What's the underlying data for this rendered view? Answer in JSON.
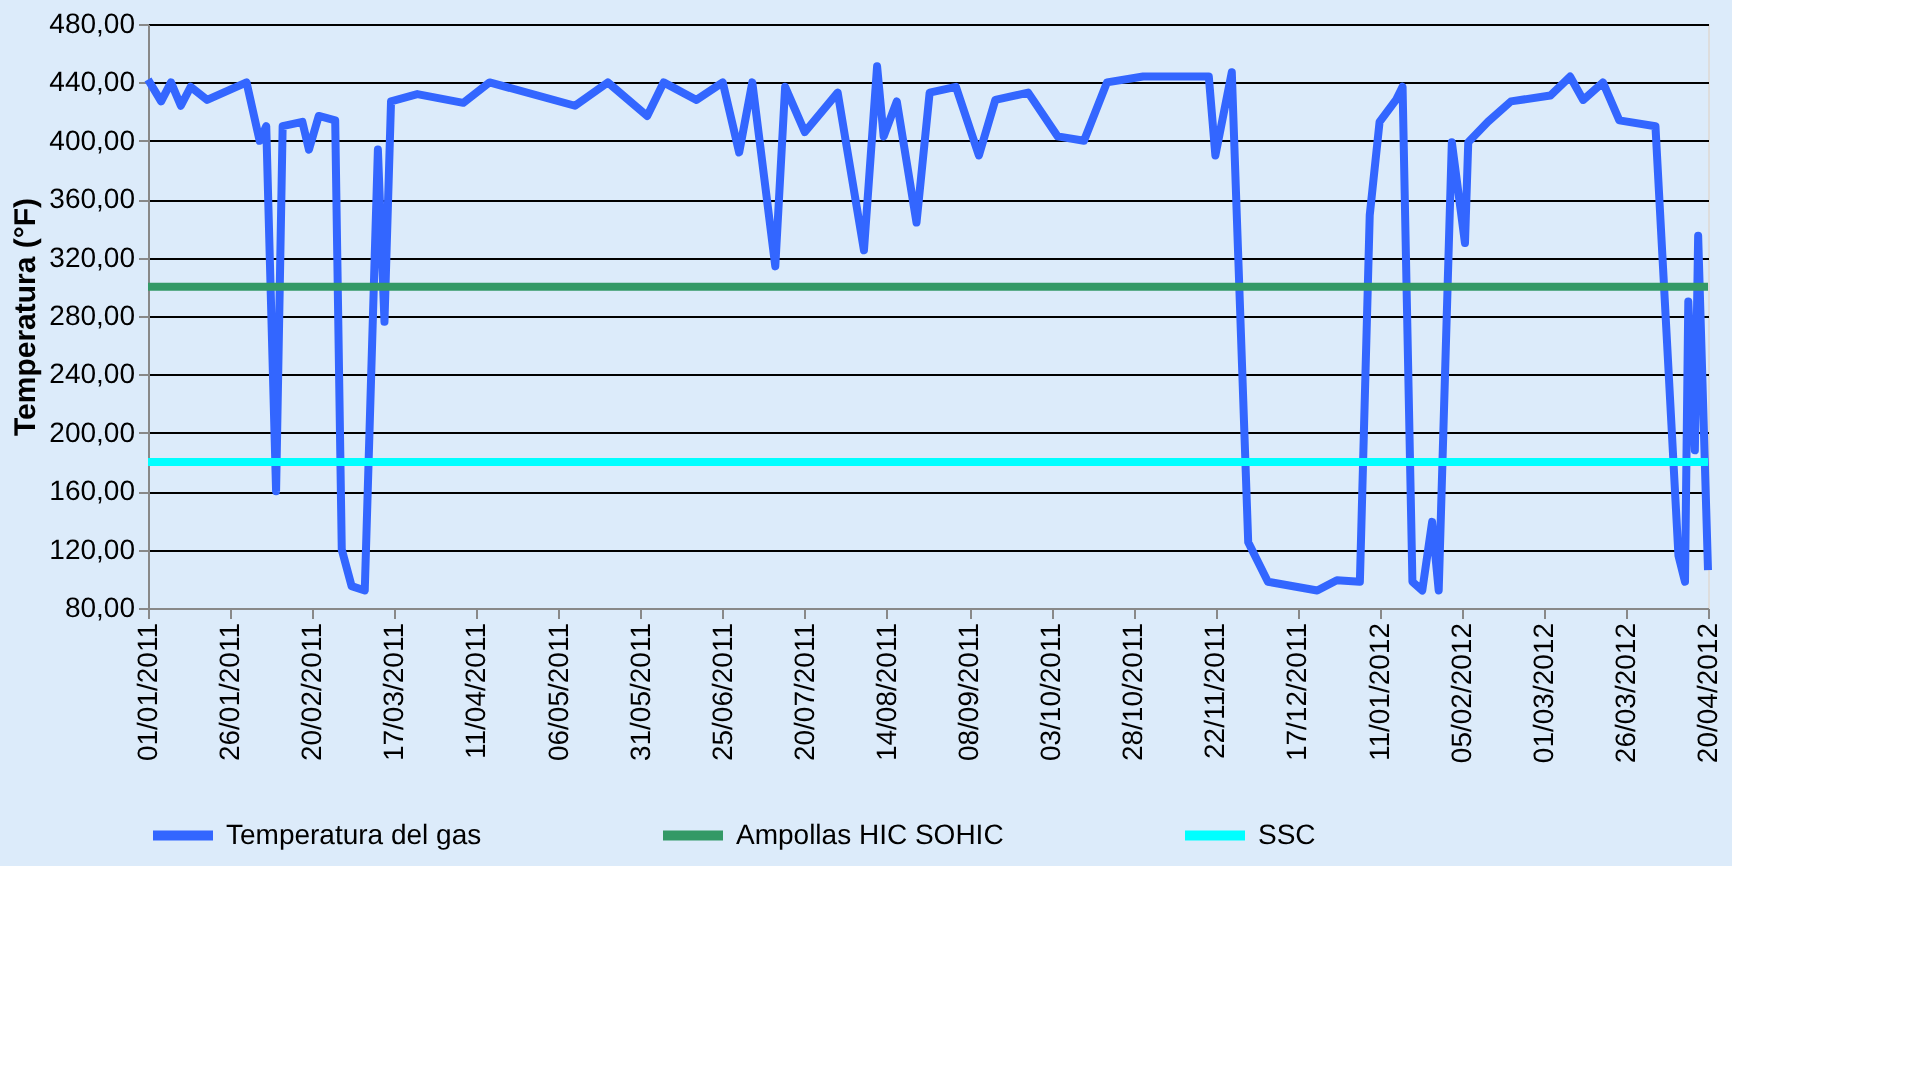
{
  "chart_data": {
    "type": "line",
    "ylabel": "Temperatura (°F)",
    "grid": "y",
    "legend": "bottom",
    "line_style": "solid",
    "marker": "none",
    "xlim": [
      "2011-01-01",
      "2012-04-20"
    ],
    "xticks": [
      {
        "value": "2011-01-01",
        "label": "01/01/2011"
      },
      {
        "value": "2011-01-26",
        "label": "26/01/2011"
      },
      {
        "value": "2011-02-20",
        "label": "20/02/2011"
      },
      {
        "value": "2011-03-17",
        "label": "17/03/2011"
      },
      {
        "value": "2011-04-11",
        "label": "11/04/2011"
      },
      {
        "value": "2011-05-06",
        "label": "06/05/2011"
      },
      {
        "value": "2011-05-31",
        "label": "31/05/2011"
      },
      {
        "value": "2011-06-25",
        "label": "25/06/2011"
      },
      {
        "value": "2011-07-20",
        "label": "20/07/2011"
      },
      {
        "value": "2011-08-14",
        "label": "14/08/2011"
      },
      {
        "value": "2011-09-08",
        "label": "08/09/2011"
      },
      {
        "value": "2011-10-03",
        "label": "03/10/2011"
      },
      {
        "value": "2011-10-28",
        "label": "28/10/2011"
      },
      {
        "value": "2011-11-22",
        "label": "22/11/2011"
      },
      {
        "value": "2011-12-17",
        "label": "17/12/2011"
      },
      {
        "value": "2012-01-11",
        "label": "11/01/2012"
      },
      {
        "value": "2012-02-05",
        "label": "05/02/2012"
      },
      {
        "value": "2012-03-01",
        "label": "01/03/2012"
      },
      {
        "value": "2012-03-26",
        "label": "26/03/2012"
      },
      {
        "value": "2012-04-20",
        "label": "20/04/2012"
      }
    ],
    "ylim": [
      80,
      480
    ],
    "yticks": [
      {
        "value": 80,
        "label": "80,00"
      },
      {
        "value": 120,
        "label": "120,00"
      },
      {
        "value": 160,
        "label": "160,00"
      },
      {
        "value": 200,
        "label": "200,00"
      },
      {
        "value": 240,
        "label": "240,00"
      },
      {
        "value": 280,
        "label": "280,00"
      },
      {
        "value": 320,
        "label": "320,00"
      },
      {
        "value": 360,
        "label": "360,00"
      },
      {
        "value": 400,
        "label": "400,00"
      },
      {
        "value": 440,
        "label": "440,00"
      },
      {
        "value": 480,
        "label": "480,00"
      }
    ],
    "series": [
      {
        "name": "Temperatura del gas",
        "color": "#3366ff",
        "x": [
          "2011-01-01",
          "2011-01-05",
          "2011-01-08",
          "2011-01-11",
          "2011-01-14",
          "2011-01-19",
          "2011-01-31",
          "2011-02-04",
          "2011-02-06",
          "2011-02-09",
          "2011-02-11",
          "2011-02-17",
          "2011-02-19",
          "2011-02-22",
          "2011-02-27",
          "2011-03-01",
          "2011-03-04",
          "2011-03-08",
          "2011-03-12",
          "2011-03-14",
          "2011-03-16",
          "2011-03-24",
          "2011-04-07",
          "2011-04-15",
          "2011-05-11",
          "2011-05-21",
          "2011-06-02",
          "2011-06-07",
          "2011-06-17",
          "2011-06-25",
          "2011-06-30",
          "2011-07-04",
          "2011-07-11",
          "2011-07-14",
          "2011-07-20",
          "2011-07-30",
          "2011-08-07",
          "2011-08-11",
          "2011-08-13",
          "2011-08-17",
          "2011-08-23",
          "2011-08-27",
          "2011-09-04",
          "2011-09-11",
          "2011-09-16",
          "2011-09-26",
          "2011-10-05",
          "2011-10-13",
          "2011-10-20",
          "2011-10-31",
          "2011-11-14",
          "2011-11-20",
          "2011-11-22",
          "2011-11-27",
          "2011-12-02",
          "2011-12-08",
          "2011-12-23",
          "2011-12-29",
          "2012-01-05",
          "2012-01-08",
          "2012-01-11",
          "2012-01-16",
          "2012-01-18",
          "2012-01-21",
          "2012-01-24",
          "2012-01-27",
          "2012-01-29",
          "2012-02-02",
          "2012-02-06",
          "2012-02-07",
          "2012-02-13",
          "2012-02-20",
          "2012-03-03",
          "2012-03-09",
          "2012-03-13",
          "2012-03-19",
          "2012-03-24",
          "2012-04-04",
          "2012-04-11",
          "2012-04-13",
          "2012-04-14",
          "2012-04-16",
          "2012-04-17",
          "2012-04-20"
        ],
        "values": [
          442,
          427,
          440,
          424,
          437,
          428,
          440,
          400,
          410,
          160,
          410,
          413,
          394,
          417,
          414,
          120,
          95,
          92,
          394,
          276,
          427,
          432,
          426,
          440,
          424,
          440,
          417,
          440,
          428,
          440,
          392,
          440,
          314,
          437,
          406,
          433,
          325,
          451,
          403,
          427,
          344,
          433,
          437,
          390,
          428,
          433,
          403,
          400,
          440,
          444,
          444,
          444,
          390,
          447,
          125,
          98,
          92,
          99,
          98,
          349,
          413,
          428,
          437,
          98,
          92,
          139,
          92,
          399,
          330,
          399,
          413,
          427,
          431,
          444,
          428,
          440,
          414,
          410,
          116,
          98,
          290,
          188,
          335,
          106
        ]
      },
      {
        "name": "Ampollas HIC SOHIC",
        "color": "#339966",
        "x": [
          "2011-01-01",
          "2012-04-20"
        ],
        "values": [
          300,
          300
        ]
      },
      {
        "name": "SSC",
        "color": "#00ffff",
        "x": [
          "2011-01-01",
          "2012-04-20"
        ],
        "values": [
          180,
          180
        ]
      }
    ]
  }
}
